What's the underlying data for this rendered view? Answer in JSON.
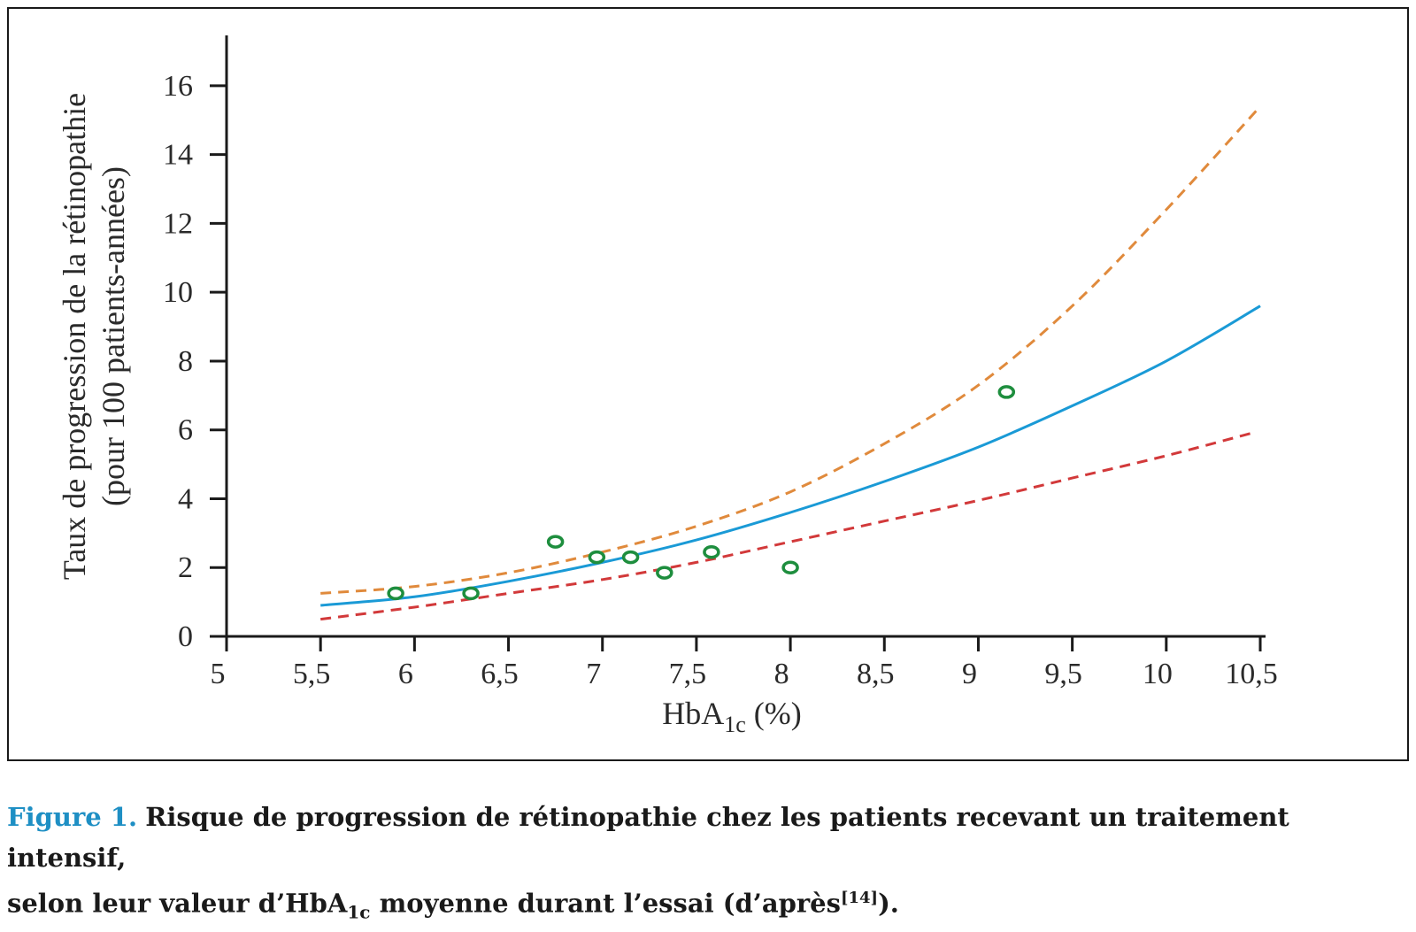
{
  "chart_data": {
    "type": "line",
    "xlabel": "HbA1c (%)",
    "xlabel_parts": {
      "base": "HbA",
      "sub": "1c",
      "unit": " (%)"
    },
    "ylabel_line1": "Taux de progression de la rétinopathie",
    "ylabel_line2": "(pour 100 patients-années)",
    "xlim": [
      5,
      10.5
    ],
    "ylim": [
      0,
      17
    ],
    "x_ticks": [
      {
        "value": 5,
        "label": "5"
      },
      {
        "value": 5.5,
        "label": "5,5"
      },
      {
        "value": 6,
        "label": "6"
      },
      {
        "value": 6.5,
        "label": "6,5"
      },
      {
        "value": 7,
        "label": "7"
      },
      {
        "value": 7.5,
        "label": "7,5"
      },
      {
        "value": 8,
        "label": "8"
      },
      {
        "value": 8.5,
        "label": "8,5"
      },
      {
        "value": 9,
        "label": "9"
      },
      {
        "value": 9.5,
        "label": "9,5"
      },
      {
        "value": 10,
        "label": "10"
      },
      {
        "value": 10.5,
        "label": "10,5"
      }
    ],
    "y_ticks": [
      {
        "value": 0,
        "label": "0"
      },
      {
        "value": 2,
        "label": "2"
      },
      {
        "value": 4,
        "label": "4"
      },
      {
        "value": 6,
        "label": "6"
      },
      {
        "value": 8,
        "label": "8"
      },
      {
        "value": 10,
        "label": "10"
      },
      {
        "value": 12,
        "label": "12"
      },
      {
        "value": 14,
        "label": "14"
      },
      {
        "value": 16,
        "label": "16"
      }
    ],
    "grid": false,
    "series": [
      {
        "style": "dashed",
        "color": "#e08a3c",
        "x": [
          5.5,
          6.0,
          6.5,
          7.0,
          7.5,
          8.0,
          8.5,
          9.0,
          9.5,
          10.0,
          10.5
        ],
        "y": [
          1.25,
          1.45,
          1.85,
          2.45,
          3.2,
          4.2,
          5.6,
          7.3,
          9.6,
          12.4,
          15.4
        ]
      },
      {
        "style": "solid",
        "color": "#1a9ad6",
        "x": [
          5.5,
          6.0,
          6.5,
          7.0,
          7.5,
          8.0,
          8.5,
          9.0,
          9.5,
          10.0,
          10.5
        ],
        "y": [
          0.9,
          1.15,
          1.6,
          2.15,
          2.8,
          3.6,
          4.5,
          5.5,
          6.7,
          8.0,
          9.6
        ]
      },
      {
        "style": "dashed",
        "color": "#d2393a",
        "x": [
          5.5,
          6.0,
          6.5,
          7.0,
          7.5,
          8.0,
          8.5,
          9.0,
          9.5,
          10.0,
          10.45
        ],
        "y": [
          0.5,
          0.85,
          1.25,
          1.65,
          2.15,
          2.75,
          3.35,
          3.95,
          4.6,
          5.25,
          5.9
        ]
      }
    ],
    "points": {
      "color": "#1e8e3e",
      "x": [
        5.9,
        6.3,
        6.75,
        6.97,
        7.15,
        7.33,
        7.58,
        8.0,
        9.15
      ],
      "y": [
        1.25,
        1.25,
        2.75,
        2.3,
        2.3,
        1.85,
        2.45,
        2.0,
        7.1
      ]
    }
  },
  "caption": {
    "figure_label": "Figure 1.",
    "line1": "Risque de progression de rétinopathie chez les patients recevant un traitement intensif,",
    "line2_a": "selon leur valeur d’HbA",
    "line2_sub": "1c",
    "line2_b": " moyenne durant l’essai (d’après",
    "line2_ref": "[14]",
    "line2_c": ")."
  }
}
